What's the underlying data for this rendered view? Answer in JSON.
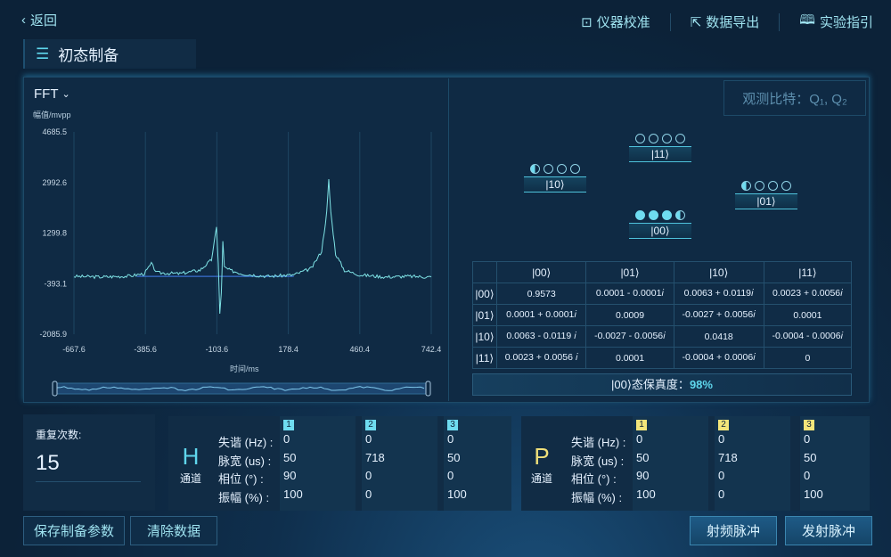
{
  "header": {
    "back": "返回",
    "calibrate": "仪器校准",
    "export": "数据导出",
    "guide": "实验指引"
  },
  "title": "初态制备",
  "chart": {
    "mode": "FFT",
    "ylabel": "幅值/mvpp",
    "xlabel": "时间/ms",
    "yticks": [
      "4685.5",
      "2992.6",
      "1299.8",
      "-393.1",
      "-2085.9"
    ],
    "xticks": [
      "-667.6",
      "-385.6",
      "-103.6",
      "178.4",
      "460.4",
      "742.4"
    ]
  },
  "chart_data": {
    "type": "line",
    "xlim": [
      -667.6,
      742.4
    ],
    "ylim": [
      -2085.9,
      4685.5
    ],
    "grid": true,
    "color": "#7fe3e6",
    "points": [
      [
        -667.6,
        -150
      ],
      [
        -560,
        -170
      ],
      [
        -450,
        -140
      ],
      [
        -390,
        -60
      ],
      [
        -362,
        270
      ],
      [
        -340,
        -30
      ],
      [
        -250,
        -60
      ],
      [
        -170,
        60
      ],
      [
        -125,
        400
      ],
      [
        -105,
        1480
      ],
      [
        -98,
        300
      ],
      [
        -92,
        -1400
      ],
      [
        -86,
        -700
      ],
      [
        -80,
        1000
      ],
      [
        -74,
        150
      ],
      [
        -50,
        50
      ],
      [
        0,
        -70
      ],
      [
        100,
        -150
      ],
      [
        200,
        -100
      ],
      [
        270,
        120
      ],
      [
        310,
        700
      ],
      [
        330,
        2000
      ],
      [
        338,
        3080
      ],
      [
        346,
        2000
      ],
      [
        365,
        600
      ],
      [
        400,
        50
      ],
      [
        460,
        -100
      ],
      [
        560,
        -170
      ],
      [
        650,
        -150
      ],
      [
        742.4,
        -170
      ]
    ]
  },
  "state_diagram": {
    "states": [
      "|11⟩",
      "|10⟩",
      "|01⟩",
      "|00⟩"
    ]
  },
  "matrix": {
    "headers": [
      "|00⟩",
      "|01⟩",
      "|10⟩",
      "|11⟩"
    ],
    "rows": [
      {
        "label": "|00⟩",
        "cells": [
          "0.9573",
          "0.0001 - 0.0001𝑖",
          "0.0063 + 0.0119𝑖",
          "0.0023 + 0.0056𝑖"
        ]
      },
      {
        "label": "|01⟩",
        "cells": [
          "0.0001 + 0.0001𝑖",
          "0.0009",
          "-0.0027 + 0.0056𝑖",
          "0.0001"
        ]
      },
      {
        "label": "|10⟩",
        "cells": [
          "0.0063 - 0.0119 𝑖",
          "-0.0027 - 0.0056𝑖",
          "0.0418",
          "-0.0004 - 0.0006𝑖"
        ]
      },
      {
        "label": "|11⟩",
        "cells": [
          "0.0023 + 0.0056 𝑖",
          "0.0001",
          "-0.0004 + 0.0006𝑖",
          "0"
        ]
      }
    ]
  },
  "fidelity": {
    "label": "|00⟩态保真度：",
    "value": "98%"
  },
  "observe": "观测比特：Q₁, Q₂",
  "repeat": {
    "label": "重复次数:",
    "value": "15"
  },
  "param_labels": [
    "失谐 (Hz) :",
    "脉宽 (us) :",
    "相位 (°) :",
    "振幅 (%) :"
  ],
  "channels": [
    {
      "letter": "H",
      "name": "通道",
      "color": "#5fd6ec",
      "tagColor": "#6fdcf0",
      "pulses": [
        {
          "n": "1",
          "v": [
            "0",
            "50",
            "90",
            "100"
          ]
        },
        {
          "n": "2",
          "v": [
            "0",
            "718",
            "0",
            "0"
          ]
        },
        {
          "n": "3",
          "v": [
            "0",
            "50",
            "0",
            "100"
          ]
        }
      ]
    },
    {
      "letter": "P",
      "name": "通道",
      "color": "#f0e07a",
      "tagColor": "#f3e57a",
      "pulses": [
        {
          "n": "1",
          "v": [
            "0",
            "50",
            "90",
            "100"
          ]
        },
        {
          "n": "2",
          "v": [
            "0",
            "718",
            "0",
            "0"
          ]
        },
        {
          "n": "3",
          "v": [
            "0",
            "50",
            "0",
            "100"
          ]
        }
      ]
    }
  ],
  "buttons": {
    "save": "保存制备参数",
    "clear": "清除数据",
    "rf": "射频脉冲",
    "send": "发射脉冲"
  }
}
